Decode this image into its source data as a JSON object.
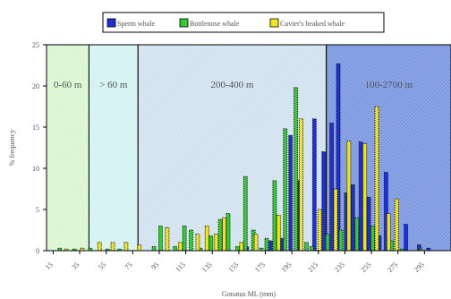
{
  "chart_data": {
    "type": "bar",
    "xlabel": "Gonatus ML (mm)",
    "ylabel": "% frequency",
    "ylim": [
      0,
      25
    ],
    "yticks": [
      0,
      5,
      10,
      15,
      20,
      25
    ],
    "xlim": [
      10,
      315
    ],
    "xticks": [
      15,
      35,
      55,
      75,
      95,
      115,
      135,
      155,
      175,
      195,
      215,
      235,
      255,
      275,
      295
    ],
    "legend_position": "top",
    "series": [
      {
        "name": "Sperm whale",
        "color": "#1f2fd6",
        "points": [
          {
            "x": 161,
            "y": 0.5
          },
          {
            "x": 179,
            "y": 1.2
          },
          {
            "x": 187,
            "y": 1.5
          },
          {
            "x": 194,
            "y": 14.0
          },
          {
            "x": 201,
            "y": 8.5
          },
          {
            "x": 212,
            "y": 16.0
          },
          {
            "x": 219,
            "y": 12.0
          },
          {
            "x": 225,
            "y": 15.5
          },
          {
            "x": 230,
            "y": 22.7
          },
          {
            "x": 236,
            "y": 7.0
          },
          {
            "x": 241,
            "y": 8.0
          },
          {
            "x": 247,
            "y": 13.2
          },
          {
            "x": 253,
            "y": 6.5
          },
          {
            "x": 261,
            "y": 1.8
          },
          {
            "x": 266,
            "y": 9.5
          },
          {
            "x": 281,
            "y": 3.2
          },
          {
            "x": 291,
            "y": 0.7
          },
          {
            "x": 298,
            "y": 0.3
          }
        ]
      },
      {
        "name": "Bottlenose whale",
        "color": "#33cc33",
        "points": [
          {
            "x": 20,
            "y": 0.3
          },
          {
            "x": 31,
            "y": 0.2
          },
          {
            "x": 43,
            "y": 0.3
          },
          {
            "x": 56,
            "y": 0.2
          },
          {
            "x": 65,
            "y": 0.2
          },
          {
            "x": 91,
            "y": 0.5
          },
          {
            "x": 96,
            "y": 3.0
          },
          {
            "x": 107,
            "y": 0.5
          },
          {
            "x": 114,
            "y": 3.0
          },
          {
            "x": 119,
            "y": 2.5
          },
          {
            "x": 126,
            "y": 0.3
          },
          {
            "x": 134,
            "y": 1.8
          },
          {
            "x": 141,
            "y": 3.8
          },
          {
            "x": 147,
            "y": 4.5
          },
          {
            "x": 154,
            "y": 0.5
          },
          {
            "x": 160,
            "y": 9.0
          },
          {
            "x": 166,
            "y": 2.5
          },
          {
            "x": 172,
            "y": 0.3
          },
          {
            "x": 176,
            "y": 1.5
          },
          {
            "x": 182,
            "y": 8.5
          },
          {
            "x": 190,
            "y": 14.8
          },
          {
            "x": 198,
            "y": 19.8
          },
          {
            "x": 206,
            "y": 1.0
          },
          {
            "x": 210,
            "y": 0.5
          },
          {
            "x": 222,
            "y": 2.0
          },
          {
            "x": 232,
            "y": 2.5
          },
          {
            "x": 244,
            "y": 4.0
          },
          {
            "x": 256,
            "y": 3.0
          },
          {
            "x": 270,
            "y": 1.2
          },
          {
            "x": 278,
            "y": 0.2
          },
          {
            "x": 292,
            "y": 0.2
          }
        ]
      },
      {
        "name": "Cuvier's beaked whale",
        "color": "#f2e61a",
        "points": [
          {
            "x": 25,
            "y": 0.2
          },
          {
            "x": 37,
            "y": 0.3
          },
          {
            "x": 50,
            "y": 1.0
          },
          {
            "x": 60,
            "y": 1.0
          },
          {
            "x": 70,
            "y": 1.0
          },
          {
            "x": 80,
            "y": 0.7
          },
          {
            "x": 101,
            "y": 2.8
          },
          {
            "x": 111,
            "y": 1.0
          },
          {
            "x": 124,
            "y": 2.0
          },
          {
            "x": 131,
            "y": 3.0
          },
          {
            "x": 138,
            "y": 2.0
          },
          {
            "x": 144,
            "y": 4.0
          },
          {
            "x": 157,
            "y": 1.0
          },
          {
            "x": 168,
            "y": 2.0
          },
          {
            "x": 185,
            "y": 4.3
          },
          {
            "x": 202,
            "y": 16.0
          },
          {
            "x": 216,
            "y": 5.0
          },
          {
            "x": 228,
            "y": 7.5
          },
          {
            "x": 238,
            "y": 13.3
          },
          {
            "x": 250,
            "y": 13.0
          },
          {
            "x": 259,
            "y": 17.5
          },
          {
            "x": 268,
            "y": 4.5
          },
          {
            "x": 274,
            "y": 6.3
          }
        ]
      }
    ],
    "regions": [
      {
        "label": "0-60 m",
        "x0": 10,
        "x1": 42,
        "fill": "#d8f5cf"
      },
      {
        "label": "> 60 m",
        "x0": 42,
        "x1": 79,
        "fill": "#d2f2f2"
      },
      {
        "label": "200-400 m",
        "x0": 79,
        "x1": 221,
        "fill": "#cfe0ee"
      },
      {
        "label": "100-2700 m",
        "x0": 221,
        "x1": 315,
        "fill": "#7e9ae0"
      }
    ]
  }
}
